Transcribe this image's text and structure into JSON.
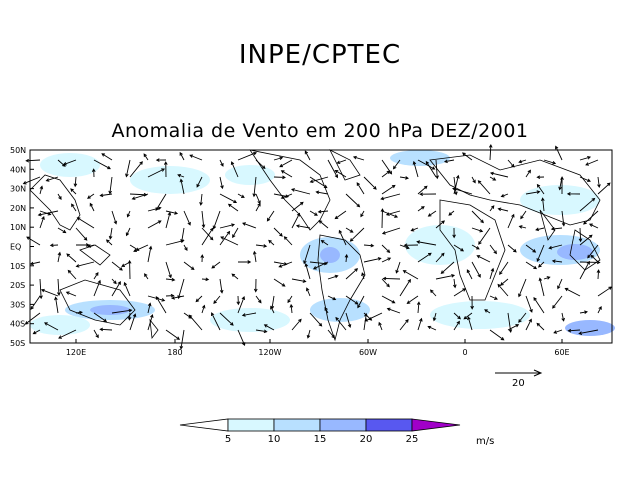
{
  "header": {
    "institution": "INPE/CPTEC"
  },
  "map": {
    "title": "Anomalia de Vento em 200 hPa DEZ/2001",
    "lat_labels": [
      "50N",
      "40N",
      "30N",
      "20N",
      "10N",
      "EQ",
      "10S",
      "20S",
      "30S",
      "40S",
      "50S"
    ],
    "lon_labels": [
      "120E",
      "180",
      "120W",
      "60W",
      "0",
      "60E"
    ],
    "reference_vector": {
      "value": "20"
    }
  },
  "colorbar": {
    "levels": [
      "5",
      "10",
      "15",
      "20",
      "25"
    ],
    "unit": "m/s",
    "colors": [
      "#ffffff",
      "#d8f8ff",
      "#b8e0ff",
      "#98b8ff",
      "#7890ff",
      "#5858f0",
      "#a000c8"
    ]
  }
}
